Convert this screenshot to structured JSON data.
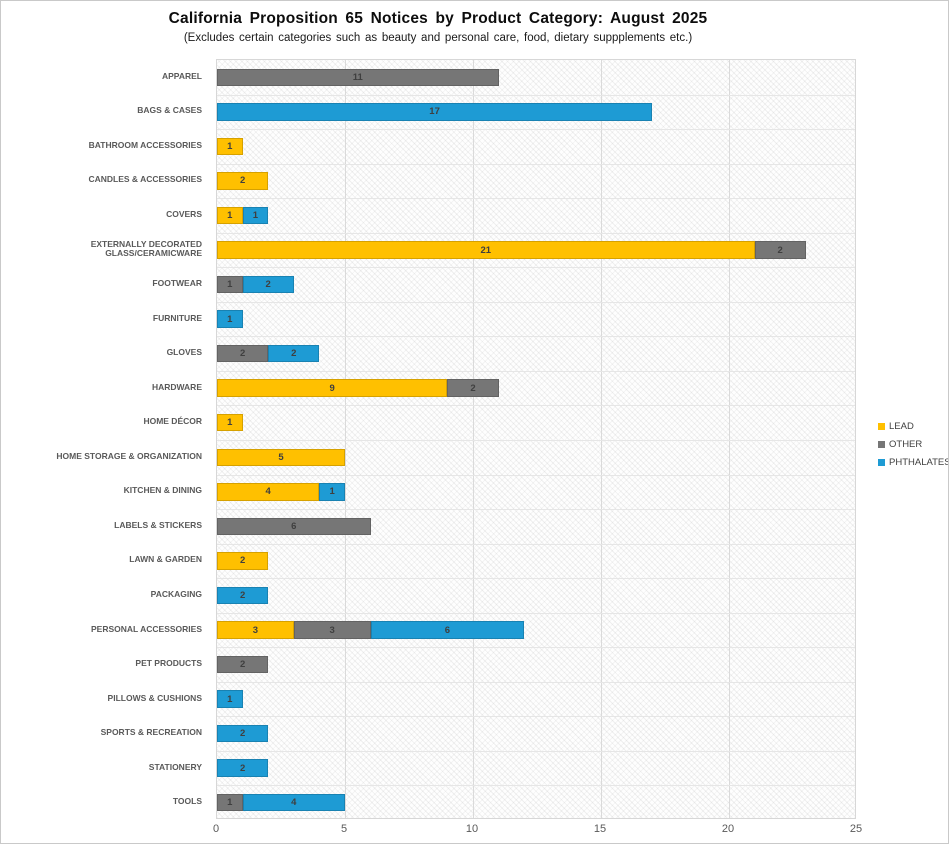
{
  "chart_data": {
    "type": "bar",
    "orientation": "horizontal",
    "stacked": true,
    "title": "California Proposition 65 Notices by Product Category: August 2025",
    "subtitle": "(Excludes certain categories such as beauty and personal care, food, dietary suppplements etc.)",
    "xlabel": "",
    "ylabel": "",
    "xlim": [
      0,
      25
    ],
    "xticks": [
      0,
      5,
      10,
      15,
      20,
      25
    ],
    "grid": "vertical major gridlines at ticks; light horizontal category separators; hatched plot background",
    "legend_position": "right-center",
    "categories": [
      "APPAREL",
      "BAGS & CASES",
      "BATHROOM ACCESSORIES",
      "CANDLES & ACCESSORIES",
      "COVERS",
      "EXTERNALLY DECORATED GLASS/CERAMICWARE",
      "FOOTWEAR",
      "FURNITURE",
      "GLOVES",
      "HARDWARE",
      "HOME DÉCOR",
      "HOME STORAGE & ORGANIZATION",
      "KITCHEN & DINING",
      "LABELS & STICKERS",
      "LAWN & GARDEN",
      "PACKAGING",
      "PERSONAL ACCESSORIES",
      "PET PRODUCTS",
      "PILLOWS & CUSHIONS",
      "SPORTS & RECREATION",
      "STATIONERY",
      "TOOLS"
    ],
    "series": [
      {
        "name": "LEAD",
        "color": "#FFC000",
        "values": [
          0,
          0,
          1,
          2,
          1,
          21,
          0,
          0,
          0,
          9,
          1,
          5,
          4,
          0,
          2,
          0,
          3,
          0,
          0,
          0,
          0,
          0
        ]
      },
      {
        "name": "OTHER",
        "color": "#767676",
        "values": [
          11,
          0,
          0,
          0,
          0,
          2,
          1,
          0,
          2,
          2,
          0,
          0,
          0,
          6,
          0,
          0,
          3,
          2,
          0,
          0,
          0,
          1
        ]
      },
      {
        "name": "PHTHALATES",
        "color": "#1E9BD4",
        "values": [
          0,
          17,
          0,
          0,
          1,
          0,
          2,
          1,
          2,
          0,
          0,
          0,
          1,
          0,
          0,
          2,
          6,
          0,
          1,
          2,
          2,
          4
        ]
      }
    ],
    "x_tick_labels": [
      "0",
      "5",
      "10",
      "15",
      "20",
      "25"
    ]
  },
  "style_colors": {
    "gridline": "#dadada",
    "row_separator": "#e6e6e6",
    "axis_text": "#595959",
    "bar_value_text": "#3f3f3f"
  }
}
